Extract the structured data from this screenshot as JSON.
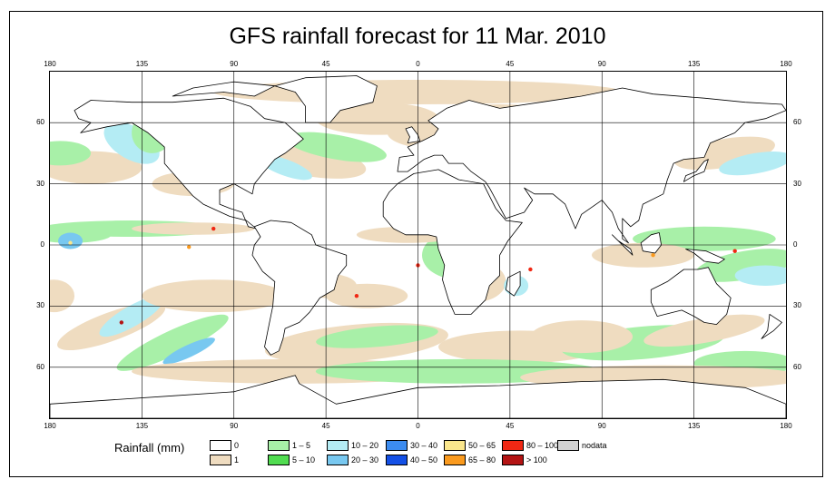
{
  "title": "GFS rainfall forecast for 11 Mar. 2010",
  "map": {
    "longitude_labels": [
      "180",
      "135",
      "90",
      "45",
      "0",
      "45",
      "90",
      "135",
      "180"
    ],
    "latitude_labels": [
      "60",
      "30",
      "0",
      "30",
      "60"
    ],
    "colors": {
      "ocean_land": "#ffffff",
      "coast": "#000000",
      "grid": "#000000"
    }
  },
  "legend": {
    "title": "Rainfall (mm)",
    "classes": [
      {
        "label": "0",
        "color": "#ffffff"
      },
      {
        "label": "1",
        "color": "#efdcc0"
      },
      {
        "label": "1 – 5",
        "color": "#a8f0a8"
      },
      {
        "label": "5 – 10",
        "color": "#50dc50"
      },
      {
        "label": "10 – 20",
        "color": "#b4ecf4"
      },
      {
        "label": "20 – 30",
        "color": "#78c8f0"
      },
      {
        "label": "30 – 40",
        "color": "#3c8cf0"
      },
      {
        "label": "40 – 50",
        "color": "#1450e6"
      },
      {
        "label": "50 – 65",
        "color": "#fae68c"
      },
      {
        "label": "65 – 80",
        "color": "#fa9a1e"
      },
      {
        "label": "80 – 100",
        "color": "#f02814"
      },
      {
        "label": "> 100",
        "color": "#b41414"
      },
      {
        "label": "nodata",
        "color": "#d2d2d2"
      }
    ]
  }
}
